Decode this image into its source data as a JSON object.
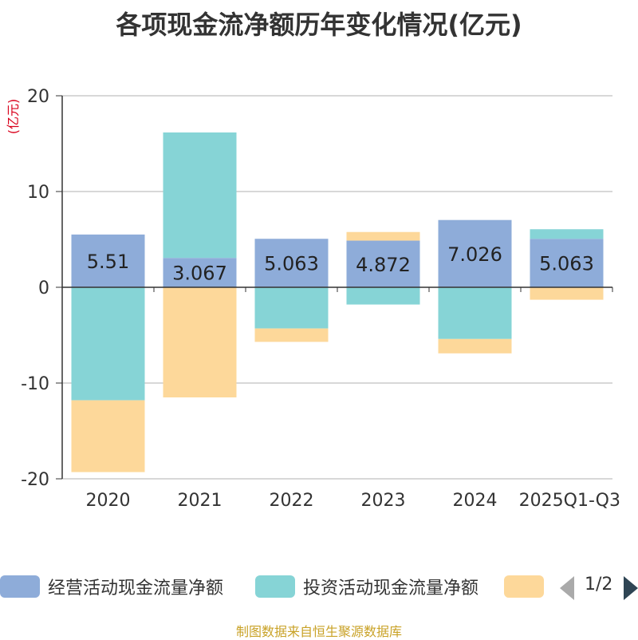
{
  "chart_data": {
    "type": "bar",
    "stacked": true,
    "title": "各项现金流净额历年变化情况(亿元)",
    "ylabel": "(亿元)",
    "ylim": [
      -20,
      20
    ],
    "yticks": [
      20,
      10,
      0,
      -10,
      -20
    ],
    "grid": true,
    "legend_placement": "bottom",
    "categories": [
      "2020",
      "2021",
      "2022",
      "2023",
      "2024",
      "2025Q1-Q3"
    ],
    "series": [
      {
        "name": "经营活动现金流量净额",
        "color": "#8eacd9",
        "values": [
          5.51,
          3.067,
          5.063,
          4.872,
          7.026,
          5.063
        ],
        "show_labels": true
      },
      {
        "name": "投资活动现金流量净额",
        "color": "#86d4d6",
        "values": [
          -11.8,
          13.1,
          -4.3,
          -1.8,
          -5.4,
          1.0
        ],
        "show_labels": false
      },
      {
        "name": "",
        "color": "#fdd89a",
        "values": [
          -7.5,
          -11.5,
          -1.4,
          0.9,
          -1.5,
          -1.3
        ],
        "show_labels": false
      }
    ]
  },
  "legend": {
    "items": [
      {
        "label": "经营活动现金流量净额",
        "color": "#8eacd9"
      },
      {
        "label": "投资活动现金流量净额",
        "color": "#86d4d6"
      },
      {
        "label": "",
        "color": "#fdd89a"
      }
    ],
    "pager_text": "1/2",
    "pager_prev_color": "#aaaaaa",
    "pager_next_color": "#2f4554"
  },
  "source_text": "制图数据来自恒生聚源数据库",
  "colors": {
    "title": "#333333",
    "axis_unit": "#d9001b",
    "source": "#c9a227"
  }
}
